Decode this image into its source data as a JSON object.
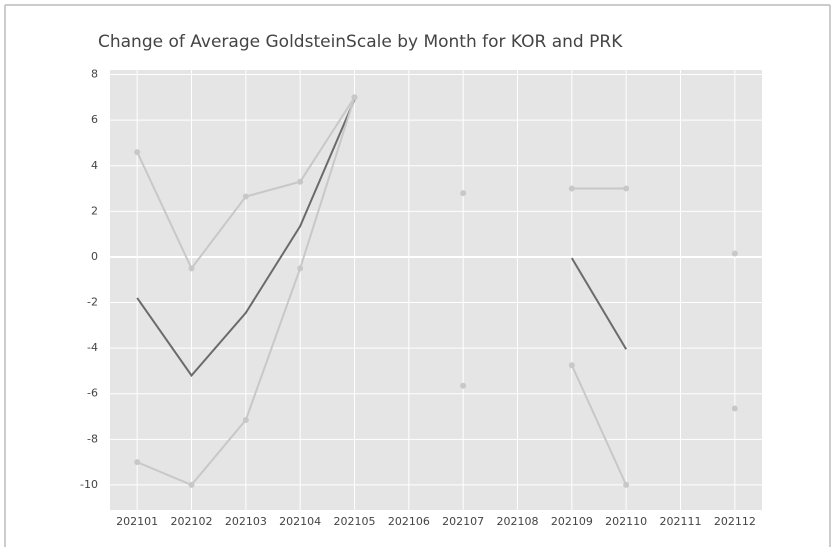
{
  "chart_data": {
    "type": "line",
    "title": "Change of Average GoldsteinScale by Month for KOR and PRK",
    "categories": [
      "202101",
      "202102",
      "202103",
      "202104",
      "202105",
      "202106",
      "202107",
      "202108",
      "202109",
      "202110",
      "202111",
      "202112"
    ],
    "series": [
      {
        "color": "#c8c8c8",
        "mode": "lines+markers",
        "values": [
          4.6,
          -0.5,
          2.65,
          3.3,
          7,
          null,
          2.8,
          null,
          3,
          3,
          null,
          0.15
        ]
      },
      {
        "color": "#6b6b6b",
        "mode": "lines",
        "values": [
          -1.8,
          -5.2,
          -2.45,
          1.35,
          6.9,
          null,
          null,
          null,
          -0.05,
          -4.05,
          null,
          null
        ]
      },
      {
        "color": "#c8c8c8",
        "mode": "lines+markers",
        "values": [
          -9,
          -10,
          -7.15,
          -0.5,
          7,
          null,
          -5.65,
          null,
          -4.75,
          -10,
          null,
          -6.65
        ]
      }
    ],
    "ylim": [
      -11.1,
      8.2
    ],
    "yticks": [
      -10,
      -8,
      -6,
      -4,
      -2,
      0,
      2,
      4,
      6,
      8
    ],
    "grid": true
  }
}
